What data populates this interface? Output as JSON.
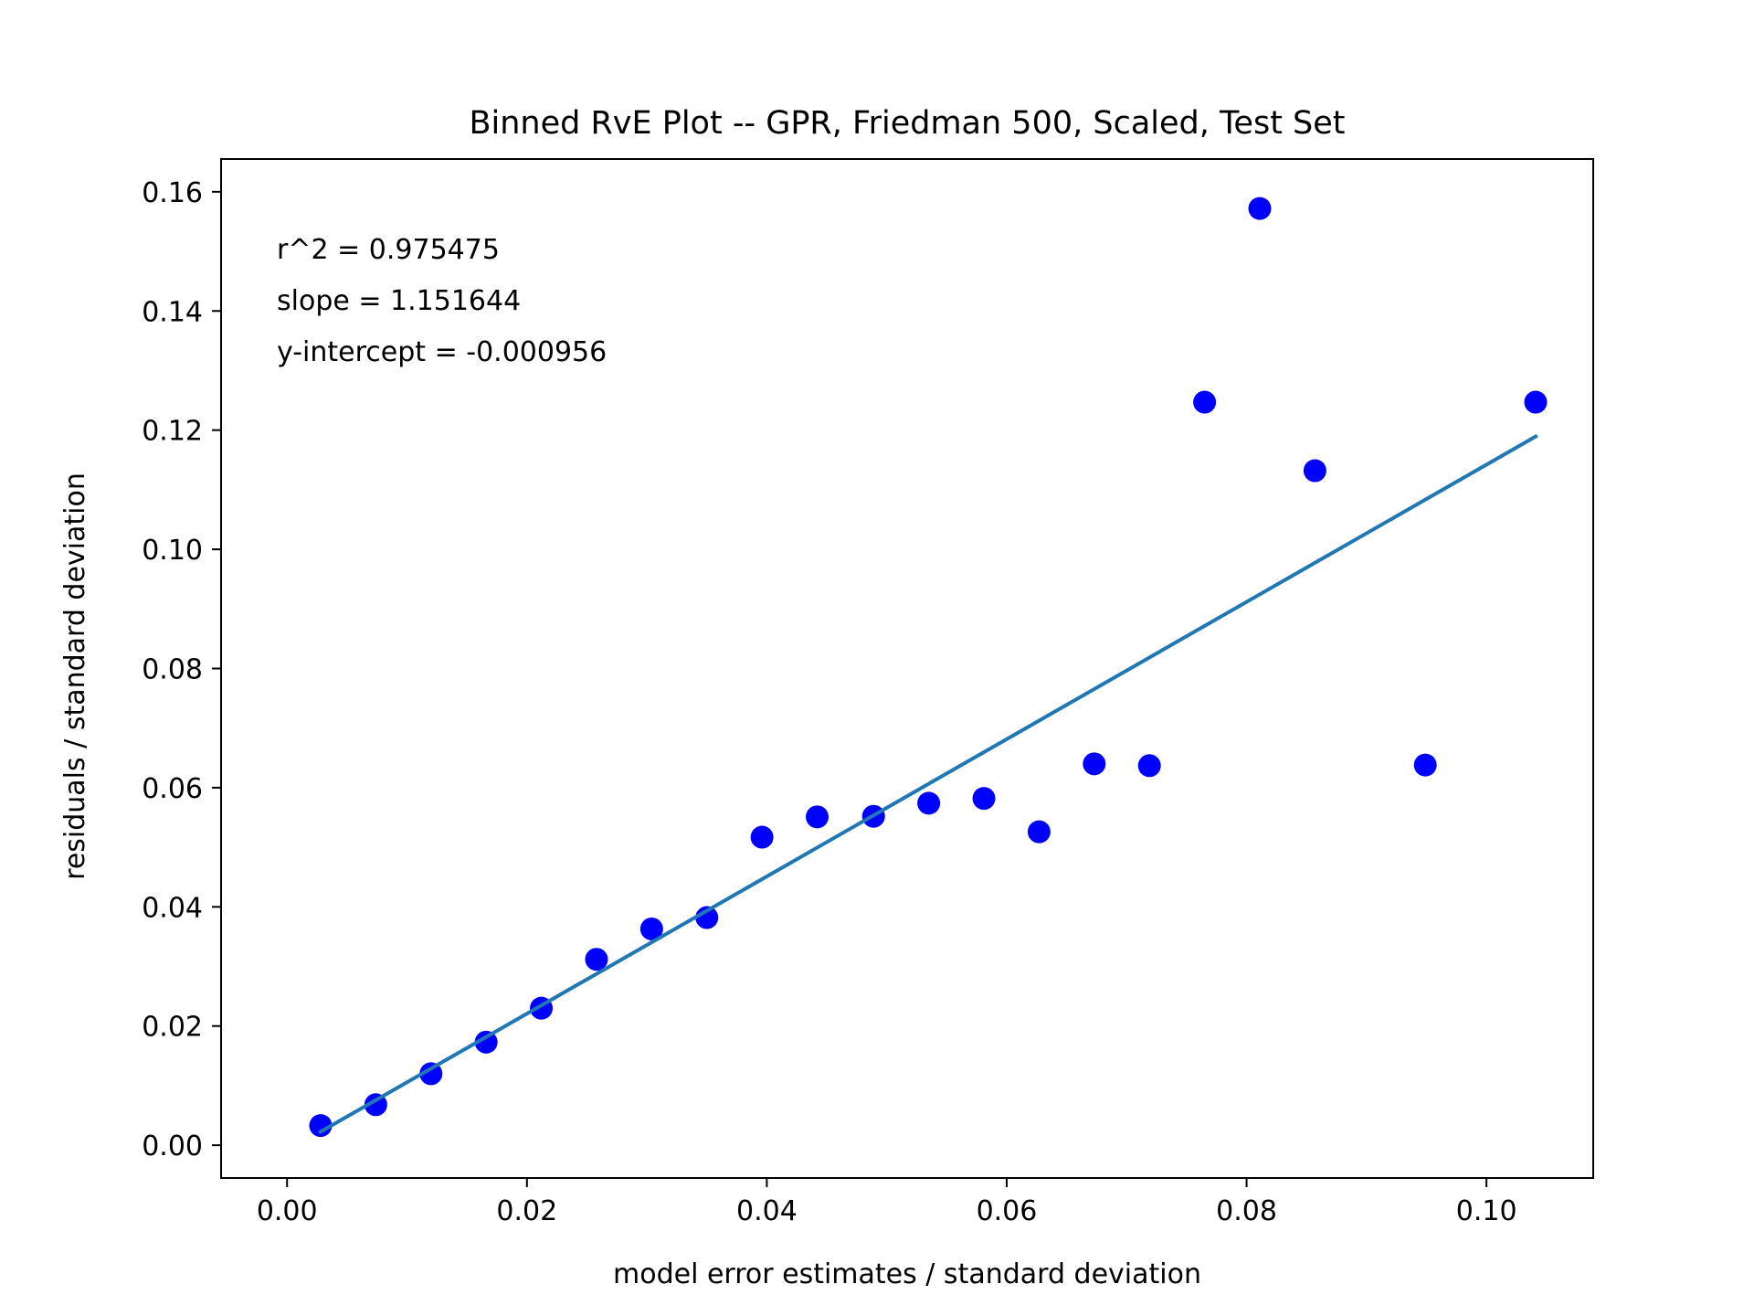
{
  "chart_data": {
    "type": "scatter",
    "title": "Binned RvE Plot -- GPR, Friedman 500, Scaled, Test Set",
    "xlabel": "model error estimates / standard deviation",
    "ylabel": "residuals / standard deviation",
    "xlim": [
      -0.0055,
      0.1089
    ],
    "ylim": [
      -0.0055,
      0.1655
    ],
    "grid": false,
    "xticks": [
      0.0,
      0.02,
      0.04,
      0.06,
      0.08,
      0.1
    ],
    "xtick_labels": [
      "0.00",
      "0.02",
      "0.04",
      "0.06",
      "0.08",
      "0.10"
    ],
    "yticks": [
      0.0,
      0.02,
      0.04,
      0.06,
      0.08,
      0.1,
      0.12,
      0.14,
      0.16
    ],
    "ytick_labels": [
      "0.00",
      "0.02",
      "0.04",
      "0.06",
      "0.08",
      "0.10",
      "0.12",
      "0.14",
      "0.16"
    ],
    "annotations": [
      "r^2 = 0.975475",
      "slope = 1.151644",
      "y-intercept = -0.000956"
    ],
    "series": [
      {
        "kind": "scatter",
        "color": "#0000ff",
        "x": [
          0.0028,
          0.0074,
          0.012,
          0.0166,
          0.0212,
          0.0258,
          0.0304,
          0.035,
          0.0396,
          0.0442,
          0.0489,
          0.0535,
          0.0581,
          0.0627,
          0.0673,
          0.0719,
          0.0765,
          0.0811,
          0.0857,
          0.0949,
          0.1041
        ],
        "y": [
          0.0033,
          0.0068,
          0.012,
          0.0173,
          0.023,
          0.0312,
          0.0363,
          0.0382,
          0.0517,
          0.0551,
          0.0552,
          0.0574,
          0.0582,
          0.0526,
          0.064,
          0.0637,
          0.1247,
          0.1572,
          0.1132,
          0.0638,
          0.1247
        ]
      },
      {
        "kind": "line",
        "color": "#1f77b4",
        "slope": 1.151644,
        "intercept": -0.000956,
        "x": [
          0.0028,
          0.1041
        ]
      }
    ]
  }
}
